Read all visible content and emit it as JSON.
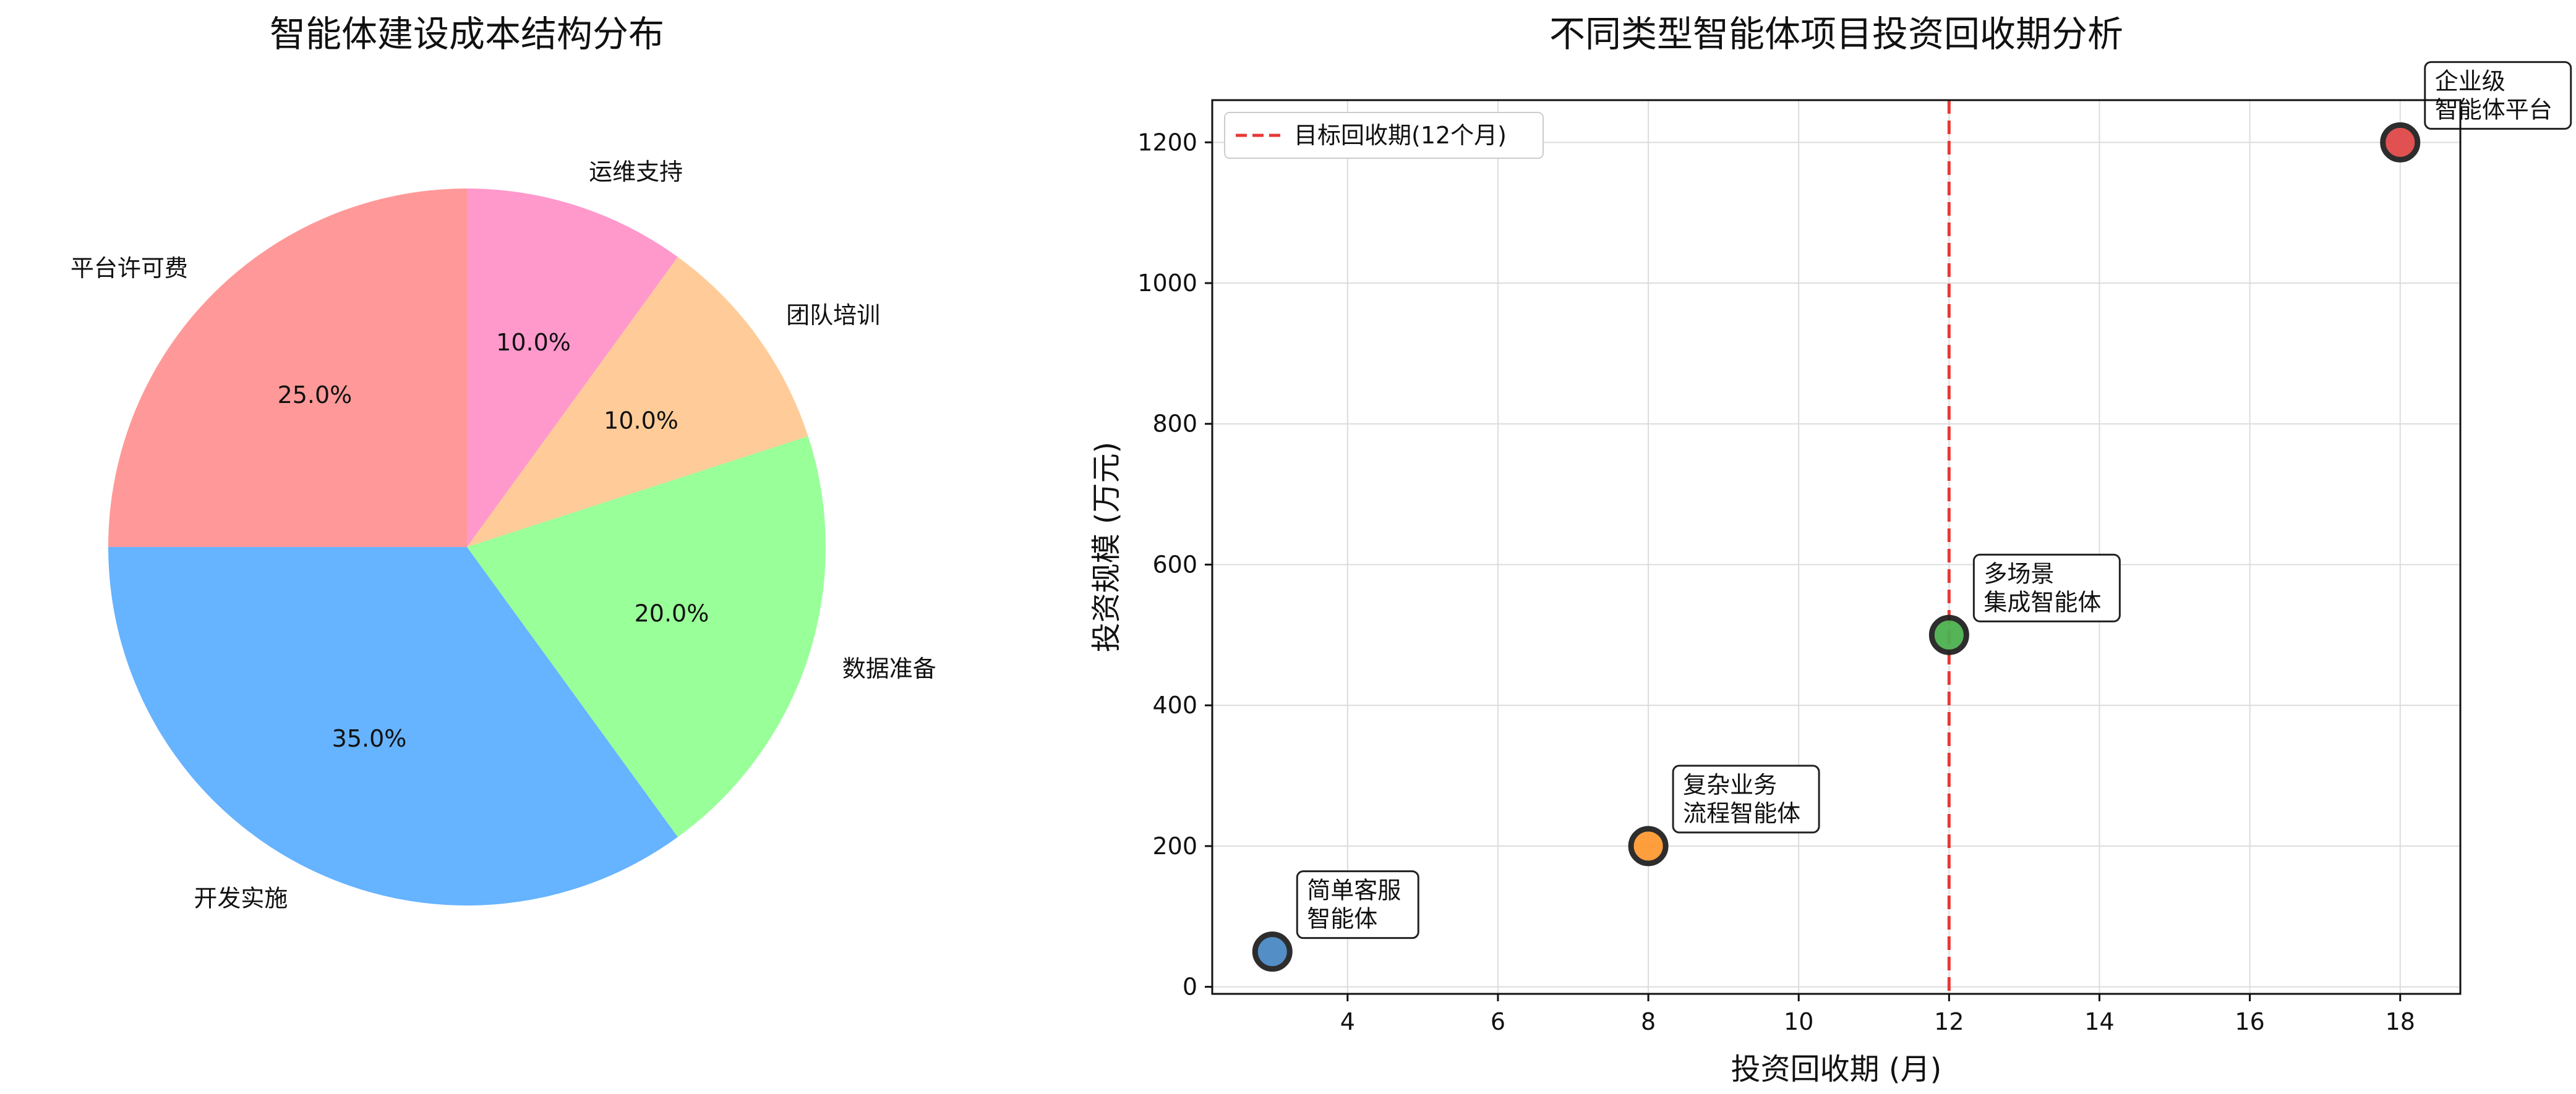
{
  "chart_data": [
    {
      "type": "pie",
      "title": "智能体建设成本结构分布",
      "categories": [
        "平台许可费",
        "开发实施",
        "数据准备",
        "团队培训",
        "运维支持"
      ],
      "values": [
        25,
        35,
        20,
        10,
        10
      ],
      "value_labels": [
        "25.0%",
        "35.0%",
        "20.0%",
        "10.0%",
        "10.0%"
      ],
      "colors": [
        "#ff9999",
        "#66b3ff",
        "#99ff99",
        "#ffcc99",
        "#ff99cc"
      ],
      "start_angle": 90,
      "direction": "counterclockwise"
    },
    {
      "type": "scatter",
      "title": "不同类型智能体项目投资回收期分析",
      "xlabel": "投资回收期 (月)",
      "ylabel": "投资规模 (万元)",
      "xlim": [
        2.2,
        18.8
      ],
      "ylim": [
        -10,
        1260
      ],
      "xticks": [
        4,
        6,
        8,
        10,
        12,
        14,
        16,
        18
      ],
      "yticks": [
        0,
        200,
        400,
        600,
        800,
        1000,
        1200
      ],
      "grid": true,
      "legend_position": "top-left",
      "points": [
        {
          "x": 3,
          "y": 50,
          "label_lines": [
            "简单客服",
            "智能体"
          ],
          "color": "#4a89c4"
        },
        {
          "x": 8,
          "y": 200,
          "label_lines": [
            "复杂业务",
            "流程智能体"
          ],
          "color": "#ff9933"
        },
        {
          "x": 12,
          "y": 500,
          "label_lines": [
            "多场景",
            "集成智能体"
          ],
          "color": "#4caf50"
        },
        {
          "x": 18,
          "y": 1200,
          "label_lines": [
            "企业级",
            "智能体平台"
          ],
          "color": "#e04848"
        }
      ],
      "reference_line": {
        "axis": "x",
        "value": 12,
        "label": "目标回收期(12个月)",
        "color": "#e53935",
        "style": "dashed"
      }
    }
  ]
}
